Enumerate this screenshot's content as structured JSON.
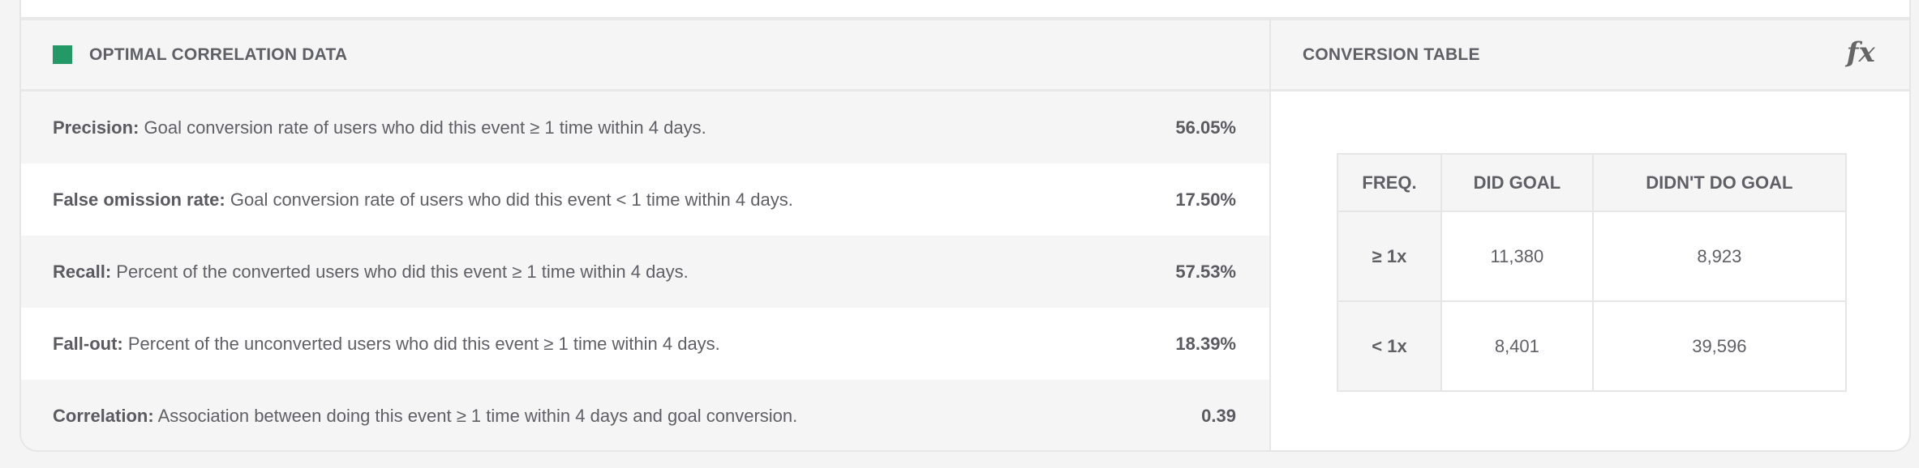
{
  "correlation": {
    "title": "OPTIMAL CORRELATION DATA",
    "accent_color": "#229966",
    "rows": [
      {
        "label": "Precision:",
        "desc": " Goal conversion rate of users who did this event ≥ 1 time within 4 days.",
        "value": "56.05%"
      },
      {
        "label": "False omission rate:",
        "desc": " Goal conversion rate of users who did this event < 1 time within 4 days.",
        "value": "17.50%"
      },
      {
        "label": "Recall:",
        "desc": " Percent of the converted users who did this event ≥ 1 time within 4 days.",
        "value": "57.53%"
      },
      {
        "label": "Fall-out:",
        "desc": " Percent of the unconverted users who did this event ≥ 1 time within 4 days.",
        "value": "18.39%"
      },
      {
        "label": "Correlation:",
        "desc": " Association between doing this event ≥ 1 time within 4 days and goal conversion.",
        "value": "0.39"
      }
    ]
  },
  "conversion": {
    "title": "CONVERSION TABLE",
    "formula_icon": "fx",
    "headers": [
      "FREQ.",
      "DID GOAL",
      "DIDN'T DO GOAL"
    ],
    "rows": [
      [
        "≥ 1x",
        "11,380",
        "8,923"
      ],
      [
        "< 1x",
        "8,401",
        "39,596"
      ]
    ]
  }
}
